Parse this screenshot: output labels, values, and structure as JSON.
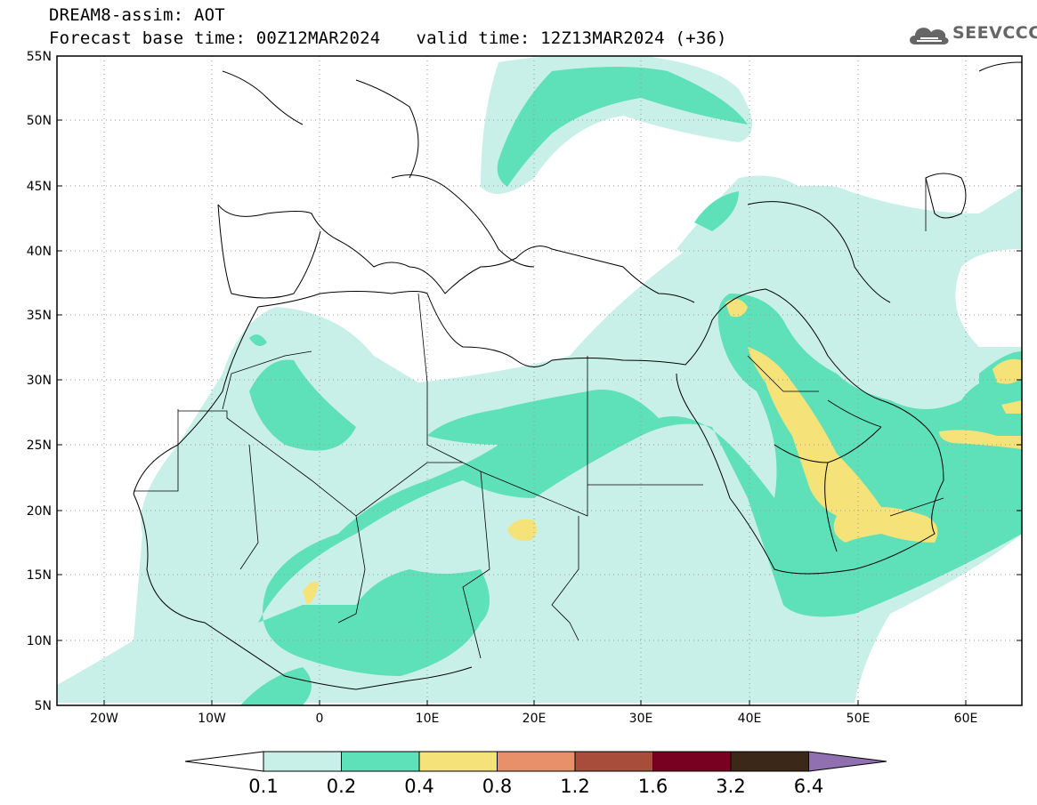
{
  "header": {
    "line1": "DREAM8-assim: AOT",
    "base_time": "Forecast base time: 00Z12MAR2024",
    "valid_time": "valid time: 12Z13MAR2024 (+36)"
  },
  "logo": {
    "text": "SEEVCCC",
    "icon": "cloud-icon"
  },
  "axes": {
    "lat_labels": [
      "55N",
      "50N",
      "45N",
      "40N",
      "35N",
      "30N",
      "25N",
      "20N",
      "15N",
      "10N",
      "5N"
    ],
    "lon_labels": [
      "20W",
      "10W",
      "0",
      "10E",
      "20E",
      "30E",
      "40E",
      "50E",
      "60E"
    ],
    "lat_range": [
      5,
      55
    ],
    "lon_range": [
      -25,
      65
    ]
  },
  "colorbar": {
    "labels": [
      "0.1",
      "0.2",
      "0.4",
      "0.8",
      "1.2",
      "1.6",
      "3.2",
      "6.4"
    ],
    "colors": [
      "#ffffff",
      "#c8f0e8",
      "#5ee0b8",
      "#f5e278",
      "#e8906a",
      "#a84c3c",
      "#780020",
      "#3c2818",
      "#9070b0"
    ]
  },
  "colors": {
    "aot_0_1": "#c8f0e8",
    "aot_0_2": "#5ee0b8",
    "aot_0_4": "#f5e278",
    "borders": "#000000"
  }
}
